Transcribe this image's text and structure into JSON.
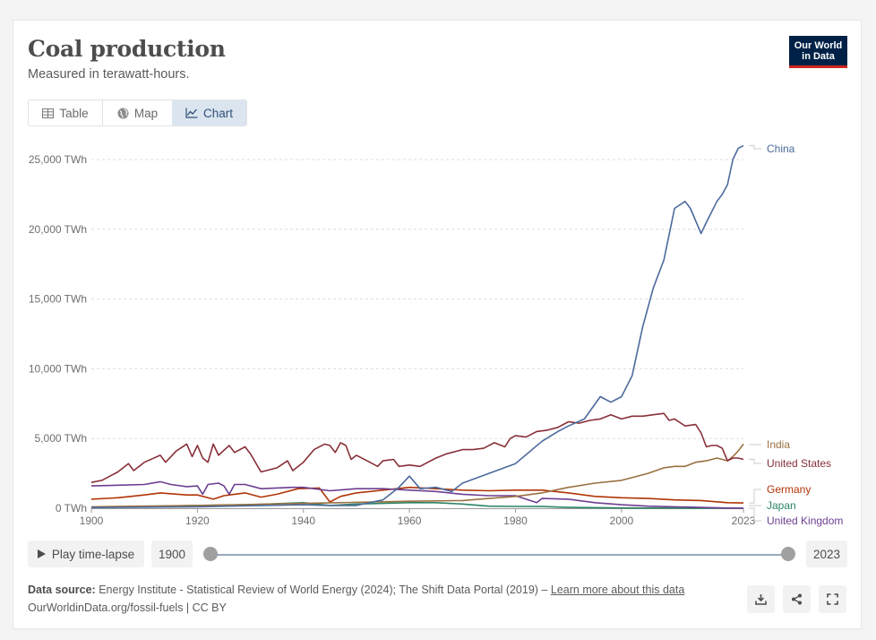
{
  "header": {
    "title": "Coal production",
    "subtitle": "Measured in terawatt-hours.",
    "logo_line1": "Our World",
    "logo_line2": "in Data"
  },
  "tabs": [
    {
      "label": "Table",
      "icon": "table-icon"
    },
    {
      "label": "Map",
      "icon": "globe-icon"
    },
    {
      "label": "Chart",
      "icon": "line-chart-icon",
      "active": true
    }
  ],
  "controls": {
    "play_label": "Play time-lapse",
    "start_year": "1900",
    "end_year": "2023"
  },
  "footer": {
    "source_label": "Data source:",
    "source_text": "Energy Institute - Statistical Review of World Energy (2024); The Shift Data Portal (2019) –",
    "learn_more": "Learn more about this data",
    "url": "OurWorldinData.org/fossil-fuels | CC BY"
  },
  "colors": {
    "China": "#4c6a9c",
    "India": "#9a7040",
    "United States": "#883039",
    "Germany": "#b13507",
    "Japan": "#2c8465",
    "United Kingdom": "#6d3e91"
  },
  "chart_data": {
    "type": "line",
    "title": "Coal production",
    "subtitle": "Measured in terawatt-hours.",
    "xlim": [
      1900,
      2023
    ],
    "ylim": [
      0,
      25000
    ],
    "yticks": [
      0,
      5000,
      10000,
      15000,
      20000,
      25000
    ],
    "ytick_labels": [
      "0 TWh",
      "5,000 TWh",
      "10,000 TWh",
      "15,000 TWh",
      "20,000 TWh",
      "25,000 TWh"
    ],
    "xticks": [
      1900,
      1920,
      1940,
      1960,
      1980,
      2000,
      2023
    ],
    "xtick_labels": [
      "1900",
      "1920",
      "1940",
      "1960",
      "1980",
      "2000",
      "2023"
    ],
    "grid": true,
    "legend": "right (inline labels)",
    "series": [
      {
        "name": "China",
        "points": [
          [
            1900,
            50
          ],
          [
            1920,
            100
          ],
          [
            1940,
            250
          ],
          [
            1945,
            200
          ],
          [
            1950,
            200
          ],
          [
            1955,
            600
          ],
          [
            1958,
            1500
          ],
          [
            1960,
            2300
          ],
          [
            1962,
            1400
          ],
          [
            1965,
            1500
          ],
          [
            1968,
            1200
          ],
          [
            1970,
            1800
          ],
          [
            1975,
            2500
          ],
          [
            1980,
            3200
          ],
          [
            1985,
            4800
          ],
          [
            1988,
            5500
          ],
          [
            1990,
            5900
          ],
          [
            1993,
            6400
          ],
          [
            1996,
            8000
          ],
          [
            1998,
            7600
          ],
          [
            2000,
            8000
          ],
          [
            2002,
            9500
          ],
          [
            2004,
            13000
          ],
          [
            2006,
            15800
          ],
          [
            2008,
            17800
          ],
          [
            2010,
            21500
          ],
          [
            2012,
            22000
          ],
          [
            2013,
            21500
          ],
          [
            2015,
            19700
          ],
          [
            2016,
            20500
          ],
          [
            2018,
            22000
          ],
          [
            2019,
            22500
          ],
          [
            2020,
            23200
          ],
          [
            2021,
            25000
          ],
          [
            2022,
            25800
          ],
          [
            2023,
            26000
          ]
        ]
      },
      {
        "name": "India",
        "points": [
          [
            1900,
            100
          ],
          [
            1920,
            200
          ],
          [
            1940,
            350
          ],
          [
            1960,
            500
          ],
          [
            1970,
            550
          ],
          [
            1975,
            700
          ],
          [
            1980,
            850
          ],
          [
            1985,
            1100
          ],
          [
            1990,
            1500
          ],
          [
            1995,
            1800
          ],
          [
            2000,
            2000
          ],
          [
            2005,
            2500
          ],
          [
            2008,
            2900
          ],
          [
            2010,
            3000
          ],
          [
            2012,
            3000
          ],
          [
            2014,
            3300
          ],
          [
            2016,
            3400
          ],
          [
            2018,
            3600
          ],
          [
            2019,
            3500
          ],
          [
            2020,
            3400
          ],
          [
            2021,
            3700
          ],
          [
            2022,
            4100
          ],
          [
            2023,
            4600
          ]
        ]
      },
      {
        "name": "United States",
        "points": [
          [
            1900,
            1850
          ],
          [
            1902,
            2000
          ],
          [
            1905,
            2600
          ],
          [
            1907,
            3200
          ],
          [
            1908,
            2700
          ],
          [
            1910,
            3300
          ],
          [
            1913,
            3800
          ],
          [
            1914,
            3300
          ],
          [
            1916,
            4100
          ],
          [
            1918,
            4600
          ],
          [
            1919,
            3700
          ],
          [
            1920,
            4500
          ],
          [
            1921,
            3600
          ],
          [
            1922,
            3300
          ],
          [
            1923,
            4600
          ],
          [
            1924,
            3800
          ],
          [
            1926,
            4500
          ],
          [
            1927,
            4000
          ],
          [
            1929,
            4400
          ],
          [
            1930,
            3900
          ],
          [
            1932,
            2600
          ],
          [
            1933,
            2700
          ],
          [
            1935,
            2900
          ],
          [
            1937,
            3400
          ],
          [
            1938,
            2700
          ],
          [
            1940,
            3300
          ],
          [
            1942,
            4200
          ],
          [
            1944,
            4600
          ],
          [
            1945,
            4500
          ],
          [
            1946,
            4000
          ],
          [
            1947,
            4700
          ],
          [
            1948,
            4500
          ],
          [
            1949,
            3500
          ],
          [
            1950,
            3800
          ],
          [
            1952,
            3400
          ],
          [
            1954,
            3000
          ],
          [
            1955,
            3400
          ],
          [
            1957,
            3500
          ],
          [
            1958,
            3000
          ],
          [
            1960,
            3100
          ],
          [
            1962,
            3000
          ],
          [
            1965,
            3600
          ],
          [
            1967,
            3900
          ],
          [
            1970,
            4200
          ],
          [
            1972,
            4200
          ],
          [
            1974,
            4300
          ],
          [
            1976,
            4700
          ],
          [
            1978,
            4400
          ],
          [
            1979,
            5000
          ],
          [
            1980,
            5200
          ],
          [
            1982,
            5100
          ],
          [
            1984,
            5500
          ],
          [
            1986,
            5600
          ],
          [
            1988,
            5800
          ],
          [
            1990,
            6200
          ],
          [
            1992,
            6100
          ],
          [
            1994,
            6300
          ],
          [
            1996,
            6400
          ],
          [
            1998,
            6700
          ],
          [
            2000,
            6400
          ],
          [
            2002,
            6600
          ],
          [
            2004,
            6600
          ],
          [
            2006,
            6700
          ],
          [
            2008,
            6800
          ],
          [
            2009,
            6300
          ],
          [
            2010,
            6400
          ],
          [
            2012,
            5900
          ],
          [
            2014,
            6000
          ],
          [
            2015,
            5400
          ],
          [
            2016,
            4400
          ],
          [
            2017,
            4500
          ],
          [
            2018,
            4500
          ],
          [
            2019,
            4300
          ],
          [
            2020,
            3400
          ],
          [
            2021,
            3600
          ],
          [
            2022,
            3600
          ],
          [
            2023,
            3500
          ]
        ]
      },
      {
        "name": "Germany",
        "points": [
          [
            1900,
            650
          ],
          [
            1905,
            750
          ],
          [
            1910,
            950
          ],
          [
            1913,
            1100
          ],
          [
            1918,
            950
          ],
          [
            1920,
            950
          ],
          [
            1923,
            650
          ],
          [
            1925,
            900
          ],
          [
            1929,
            1100
          ],
          [
            1932,
            800
          ],
          [
            1935,
            1000
          ],
          [
            1939,
            1400
          ],
          [
            1943,
            1450
          ],
          [
            1945,
            450
          ],
          [
            1947,
            850
          ],
          [
            1950,
            1100
          ],
          [
            1955,
            1300
          ],
          [
            1960,
            1500
          ],
          [
            1965,
            1400
          ],
          [
            1970,
            1300
          ],
          [
            1975,
            1250
          ],
          [
            1980,
            1300
          ],
          [
            1985,
            1300
          ],
          [
            1990,
            1100
          ],
          [
            1995,
            850
          ],
          [
            2000,
            750
          ],
          [
            2005,
            700
          ],
          [
            2010,
            600
          ],
          [
            2015,
            550
          ],
          [
            2020,
            400
          ],
          [
            2023,
            380
          ]
        ]
      },
      {
        "name": "Japan",
        "points": [
          [
            1900,
            50
          ],
          [
            1920,
            200
          ],
          [
            1930,
            250
          ],
          [
            1940,
            400
          ],
          [
            1945,
            200
          ],
          [
            1950,
            300
          ],
          [
            1955,
            350
          ],
          [
            1960,
            400
          ],
          [
            1965,
            400
          ],
          [
            1970,
            300
          ],
          [
            1975,
            150
          ],
          [
            1980,
            130
          ],
          [
            1985,
            120
          ],
          [
            1990,
            60
          ],
          [
            2000,
            20
          ],
          [
            2010,
            5
          ],
          [
            2023,
            5
          ]
        ]
      },
      {
        "name": "United Kingdom",
        "points": [
          [
            1900,
            1600
          ],
          [
            1905,
            1650
          ],
          [
            1910,
            1700
          ],
          [
            1913,
            1900
          ],
          [
            1915,
            1700
          ],
          [
            1918,
            1550
          ],
          [
            1920,
            1600
          ],
          [
            1921,
            1000
          ],
          [
            1922,
            1700
          ],
          [
            1924,
            1800
          ],
          [
            1925,
            1600
          ],
          [
            1926,
            1000
          ],
          [
            1927,
            1700
          ],
          [
            1929,
            1700
          ],
          [
            1932,
            1400
          ],
          [
            1935,
            1450
          ],
          [
            1938,
            1500
          ],
          [
            1940,
            1500
          ],
          [
            1945,
            1250
          ],
          [
            1950,
            1400
          ],
          [
            1955,
            1400
          ],
          [
            1960,
            1300
          ],
          [
            1965,
            1200
          ],
          [
            1970,
            1000
          ],
          [
            1975,
            900
          ],
          [
            1980,
            900
          ],
          [
            1984,
            400
          ],
          [
            1985,
            700
          ],
          [
            1990,
            650
          ],
          [
            1995,
            400
          ],
          [
            2000,
            250
          ],
          [
            2005,
            150
          ],
          [
            2010,
            100
          ],
          [
            2015,
            60
          ],
          [
            2020,
            10
          ],
          [
            2023,
            5
          ]
        ]
      }
    ]
  }
}
